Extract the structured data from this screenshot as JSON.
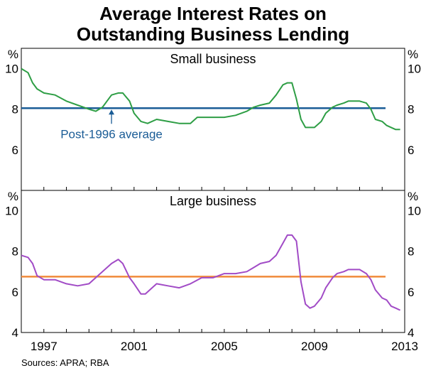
{
  "title_line1": "Average Interest Rates on",
  "title_line2": "Outstanding Business Lending",
  "source": "Sources: APRA; RBA",
  "colors": {
    "small_series": "#2e9e45",
    "small_average": "#1a5c96",
    "large_series": "#a14bc6",
    "large_average": "#f08a3a",
    "annotation": "#1a5c96"
  },
  "chart_data": [
    {
      "type": "line",
      "title": "Small business",
      "ylabel": "%",
      "ylim": [
        4,
        11
      ],
      "yticks": [
        6,
        8,
        10
      ],
      "xlim": [
        1996.0,
        2013.0
      ],
      "average": 8.05,
      "annotation": "Post-1996 average",
      "annotation_x": 2000.0,
      "series": [
        {
          "name": "Small business",
          "x": [
            1996.0,
            1996.3,
            1996.5,
            1996.7,
            1997.0,
            1997.5,
            1998.0,
            1998.5,
            1999.0,
            1999.3,
            1999.6,
            1999.8,
            2000.0,
            2000.3,
            2000.5,
            2000.8,
            2001.0,
            2001.3,
            2001.6,
            2002.0,
            2002.5,
            2003.0,
            2003.5,
            2003.8,
            2004.0,
            2004.3,
            2004.5,
            2005.0,
            2005.5,
            2006.0,
            2006.3,
            2006.6,
            2007.0,
            2007.3,
            2007.6,
            2007.8,
            2008.0,
            2008.2,
            2008.4,
            2008.6,
            2008.8,
            2009.0,
            2009.3,
            2009.5,
            2009.8,
            2010.0,
            2010.3,
            2010.5,
            2010.8,
            2011.0,
            2011.3,
            2011.5,
            2011.7,
            2012.0,
            2012.2,
            2012.4,
            2012.6,
            2012.8
          ],
          "values": [
            10.0,
            9.8,
            9.3,
            9.0,
            8.8,
            8.7,
            8.4,
            8.2,
            8.0,
            7.9,
            8.1,
            8.4,
            8.7,
            8.8,
            8.8,
            8.4,
            7.8,
            7.4,
            7.3,
            7.5,
            7.4,
            7.3,
            7.3,
            7.6,
            7.6,
            7.6,
            7.6,
            7.6,
            7.7,
            7.9,
            8.1,
            8.2,
            8.3,
            8.7,
            9.2,
            9.3,
            9.3,
            8.5,
            7.5,
            7.1,
            7.1,
            7.1,
            7.4,
            7.8,
            8.1,
            8.2,
            8.3,
            8.4,
            8.4,
            8.4,
            8.3,
            8.0,
            7.5,
            7.4,
            7.2,
            7.1,
            7.0,
            7.0
          ]
        }
      ]
    },
    {
      "type": "line",
      "title": "Large business",
      "ylabel": "%",
      "ylim": [
        4,
        11
      ],
      "yticks": [
        4,
        6,
        8,
        10
      ],
      "xlim": [
        1996.0,
        2013.0
      ],
      "xticks": [
        "1997",
        "2001",
        "2005",
        "2009",
        "2013"
      ],
      "average": 6.75,
      "series": [
        {
          "name": "Large business",
          "x": [
            1996.0,
            1996.3,
            1996.5,
            1996.7,
            1997.0,
            1997.5,
            1998.0,
            1998.5,
            1999.0,
            1999.5,
            2000.0,
            2000.3,
            2000.5,
            2000.8,
            2001.0,
            2001.3,
            2001.5,
            2001.8,
            2002.0,
            2002.5,
            2003.0,
            2003.5,
            2004.0,
            2004.5,
            2005.0,
            2005.5,
            2006.0,
            2006.3,
            2006.6,
            2007.0,
            2007.3,
            2007.6,
            2007.8,
            2008.0,
            2008.2,
            2008.4,
            2008.6,
            2008.8,
            2009.0,
            2009.3,
            2009.5,
            2009.8,
            2010.0,
            2010.3,
            2010.5,
            2010.8,
            2011.0,
            2011.3,
            2011.5,
            2011.7,
            2012.0,
            2012.2,
            2012.4,
            2012.6,
            2012.8
          ],
          "values": [
            7.8,
            7.7,
            7.4,
            6.8,
            6.6,
            6.6,
            6.4,
            6.3,
            6.4,
            6.9,
            7.4,
            7.6,
            7.4,
            6.7,
            6.4,
            5.9,
            5.9,
            6.2,
            6.4,
            6.3,
            6.2,
            6.4,
            6.7,
            6.7,
            6.9,
            6.9,
            7.0,
            7.2,
            7.4,
            7.5,
            7.8,
            8.4,
            8.8,
            8.8,
            8.5,
            6.5,
            5.4,
            5.2,
            5.3,
            5.7,
            6.2,
            6.7,
            6.9,
            7.0,
            7.1,
            7.1,
            7.1,
            6.9,
            6.6,
            6.1,
            5.7,
            5.6,
            5.3,
            5.2,
            5.1
          ]
        }
      ]
    }
  ]
}
